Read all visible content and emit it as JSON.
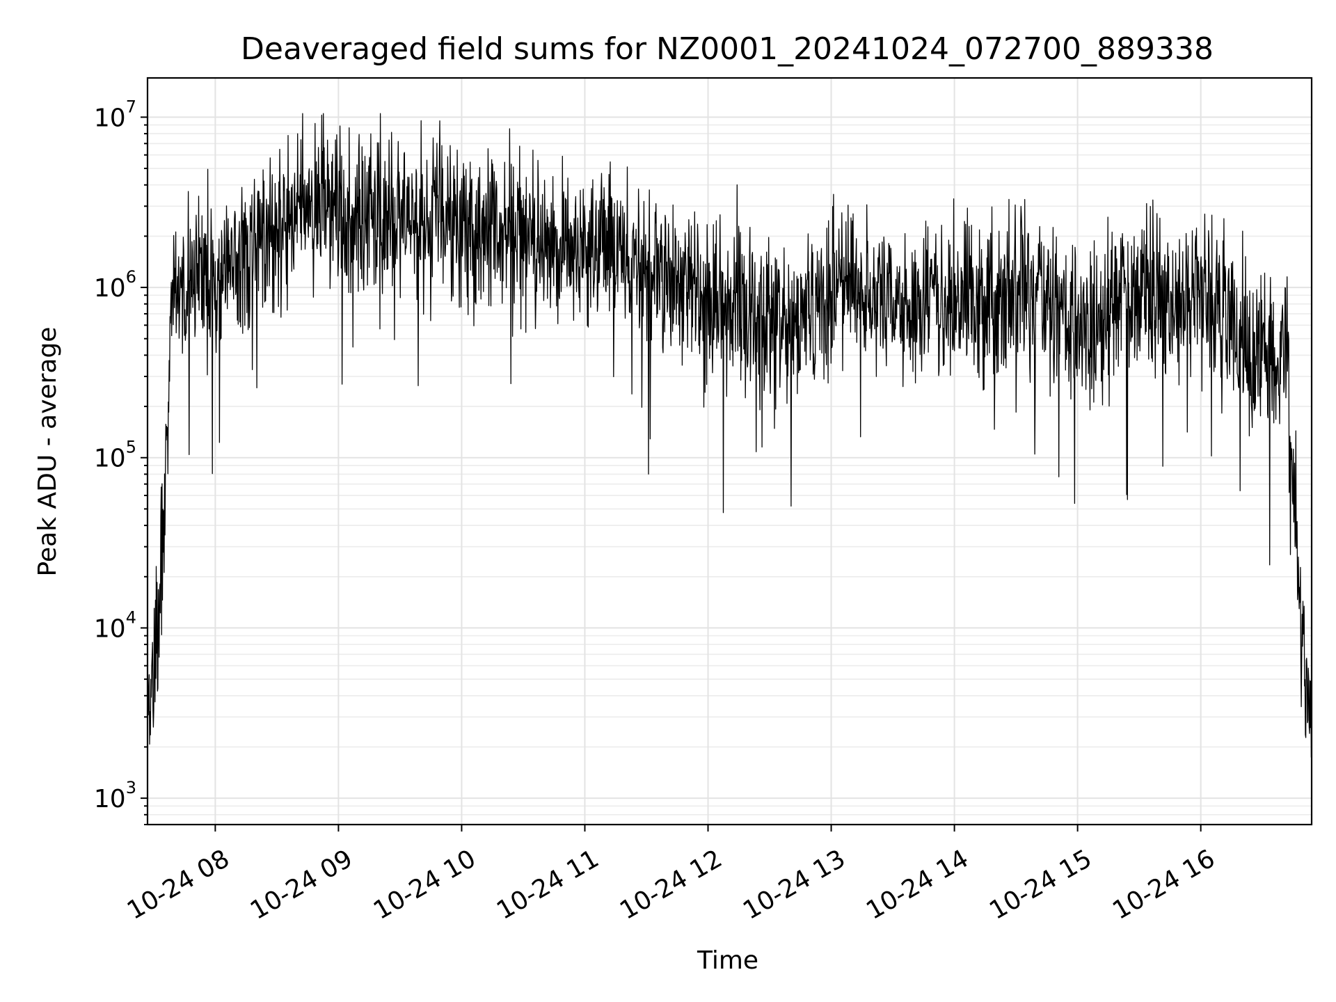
{
  "chart_data": {
    "type": "line",
    "title": "Deaveraged field sums for NZ0001_20241024_072700_889338",
    "xlabel": "Time",
    "ylabel": "Peak ADU - average",
    "yscale": "log",
    "xlim": [
      "2024-10-24 07:27",
      "2024-10-24 16:54"
    ],
    "ylim": [
      700,
      17000000
    ],
    "grid": "on (major and minor)",
    "x_ticks": [
      {
        "t": "2024-10-24 08:00",
        "label": "10-24 08"
      },
      {
        "t": "2024-10-24 09:00",
        "label": "10-24 09"
      },
      {
        "t": "2024-10-24 10:00",
        "label": "10-24 10"
      },
      {
        "t": "2024-10-24 11:00",
        "label": "10-24 11"
      },
      {
        "t": "2024-10-24 12:00",
        "label": "10-24 12"
      },
      {
        "t": "2024-10-24 13:00",
        "label": "10-24 13"
      },
      {
        "t": "2024-10-24 14:00",
        "label": "10-24 14"
      },
      {
        "t": "2024-10-24 15:00",
        "label": "10-24 15"
      },
      {
        "t": "2024-10-24 16:00",
        "label": "10-24 16"
      }
    ],
    "y_ticks": [
      {
        "value": 1000,
        "base": "10",
        "exp": "3"
      },
      {
        "value": 10000,
        "base": "10",
        "exp": "4"
      },
      {
        "value": 100000,
        "base": "10",
        "exp": "5"
      },
      {
        "value": 1000000,
        "base": "10",
        "exp": "6"
      },
      {
        "value": 10000000,
        "base": "10",
        "exp": "7"
      }
    ],
    "series": [
      {
        "color": "#000000",
        "x": [
          "2024-10-24 07:27",
          "2024-10-24 07:31",
          "2024-10-24 07:35",
          "2024-10-24 07:39",
          "2024-10-24 07:45",
          "2024-10-24 07:52",
          "2024-10-24 08:00",
          "2024-10-24 08:15",
          "2024-10-24 08:30",
          "2024-10-24 08:45",
          "2024-10-24 09:00",
          "2024-10-24 09:15",
          "2024-10-24 09:30",
          "2024-10-24 09:45",
          "2024-10-24 10:00",
          "2024-10-24 10:15",
          "2024-10-24 10:30",
          "2024-10-24 10:45",
          "2024-10-24 11:00",
          "2024-10-24 11:15",
          "2024-10-24 11:30",
          "2024-10-24 11:45",
          "2024-10-24 12:00",
          "2024-10-24 12:15",
          "2024-10-24 12:30",
          "2024-10-24 12:45",
          "2024-10-24 13:00",
          "2024-10-24 13:15",
          "2024-10-24 13:30",
          "2024-10-24 13:45",
          "2024-10-24 14:00",
          "2024-10-24 14:15",
          "2024-10-24 14:30",
          "2024-10-24 14:45",
          "2024-10-24 15:00",
          "2024-10-24 15:15",
          "2024-10-24 15:30",
          "2024-10-24 15:45",
          "2024-10-24 16:00",
          "2024-10-24 16:15",
          "2024-10-24 16:30",
          "2024-10-24 16:42",
          "2024-10-24 16:47",
          "2024-10-24 16:50",
          "2024-10-24 16:54"
        ],
        "y": [
          5000,
          7000,
          50000,
          1000000,
          800000,
          1000000,
          1200000,
          1500000,
          2500000,
          2800000,
          2500000,
          2600000,
          2600000,
          2500000,
          2400000,
          2200000,
          2000000,
          1700000,
          1600000,
          1800000,
          1500000,
          1000000,
          850000,
          700000,
          650000,
          700000,
          1100000,
          1000000,
          850000,
          800000,
          800000,
          850000,
          800000,
          900000,
          550000,
          700000,
          900000,
          800000,
          1000000,
          600000,
          400000,
          400000,
          30000,
          6000,
          3000
        ]
      }
    ]
  }
}
